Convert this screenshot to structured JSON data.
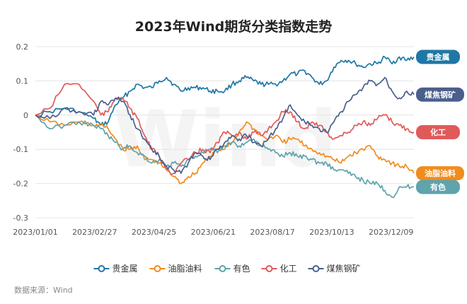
{
  "chart_data": {
    "type": "line",
    "title": "2023年Wind期货分类指数走势",
    "xlabel": "",
    "ylabel": "",
    "x_ticks": [
      "2023/01/01",
      "2023/02/27",
      "2023/04/25",
      "2023/06/21",
      "2023/08/17",
      "2023/10/13",
      "2023/12/09"
    ],
    "y_ticks": [
      "0.2",
      "0.1",
      "0",
      "-0.1",
      "-0.2",
      "-0.3"
    ],
    "ylim": [
      -0.3,
      0.2
    ],
    "grid": "horizontal",
    "legend_position": "bottom",
    "source": "数据来源：Wind",
    "watermark": "Wind",
    "series": [
      {
        "name": "贵金属",
        "color": "#1f77a5",
        "end_label": "贵金属",
        "points": [
          [
            "2023/01/01",
            0.0
          ],
          [
            "2023/01/15",
            0.01
          ],
          [
            "2023/01/29",
            0.02
          ],
          [
            "2023/02/12",
            0.01
          ],
          [
            "2023/02/26",
            -0.01
          ],
          [
            "2023/03/05",
            -0.03
          ],
          [
            "2023/03/12",
            -0.02
          ],
          [
            "2023/03/19",
            0.03
          ],
          [
            "2023/03/26",
            0.05
          ],
          [
            "2023/04/02",
            0.07
          ],
          [
            "2023/04/09",
            0.09
          ],
          [
            "2023/04/16",
            0.08
          ],
          [
            "2023/04/23",
            0.08
          ],
          [
            "2023/04/30",
            0.1
          ],
          [
            "2023/05/07",
            0.11
          ],
          [
            "2023/05/14",
            0.09
          ],
          [
            "2023/05/21",
            0.07
          ],
          [
            "2023/05/28",
            0.08
          ],
          [
            "2023/06/04",
            0.08
          ],
          [
            "2023/06/11",
            0.08
          ],
          [
            "2023/06/18",
            0.07
          ],
          [
            "2023/06/25",
            0.07
          ],
          [
            "2023/07/02",
            0.07
          ],
          [
            "2023/07/09",
            0.09
          ],
          [
            "2023/07/16",
            0.1
          ],
          [
            "2023/07/23",
            0.11
          ],
          [
            "2023/07/30",
            0.1
          ],
          [
            "2023/08/06",
            0.09
          ],
          [
            "2023/08/13",
            0.09
          ],
          [
            "2023/08/20",
            0.09
          ],
          [
            "2023/08/27",
            0.1
          ],
          [
            "2023/09/03",
            0.12
          ],
          [
            "2023/09/10",
            0.12
          ],
          [
            "2023/09/17",
            0.13
          ],
          [
            "2023/09/24",
            0.11
          ],
          [
            "2023/10/01",
            0.09
          ],
          [
            "2023/10/08",
            0.1
          ],
          [
            "2023/10/15",
            0.14
          ],
          [
            "2023/10/22",
            0.16
          ],
          [
            "2023/10/29",
            0.16
          ],
          [
            "2023/11/05",
            0.15
          ],
          [
            "2023/11/12",
            0.14
          ],
          [
            "2023/11/19",
            0.15
          ],
          [
            "2023/11/26",
            0.15
          ],
          [
            "2023/12/03",
            0.17
          ],
          [
            "2023/12/10",
            0.15
          ],
          [
            "2023/12/17",
            0.17
          ],
          [
            "2023/12/24",
            0.16
          ],
          [
            "2023/12/31",
            0.17
          ]
        ]
      },
      {
        "name": "油脂油料",
        "color": "#f08c1e",
        "end_label": "油脂油料",
        "points": [
          [
            "2023/01/01",
            0.0
          ],
          [
            "2023/01/15",
            -0.02
          ],
          [
            "2023/01/29",
            -0.03
          ],
          [
            "2023/02/12",
            -0.02
          ],
          [
            "2023/02/26",
            -0.03
          ],
          [
            "2023/03/05",
            -0.03
          ],
          [
            "2023/03/12",
            -0.04
          ],
          [
            "2023/03/19",
            -0.07
          ],
          [
            "2023/03/26",
            -0.1
          ],
          [
            "2023/04/02",
            -0.1
          ],
          [
            "2023/04/09",
            -0.09
          ],
          [
            "2023/04/16",
            -0.13
          ],
          [
            "2023/04/23",
            -0.13
          ],
          [
            "2023/04/30",
            -0.14
          ],
          [
            "2023/05/07",
            -0.16
          ],
          [
            "2023/05/14",
            -0.18
          ],
          [
            "2023/05/21",
            -0.2
          ],
          [
            "2023/05/28",
            -0.18
          ],
          [
            "2023/06/04",
            -0.17
          ],
          [
            "2023/06/11",
            -0.14
          ],
          [
            "2023/06/18",
            -0.12
          ],
          [
            "2023/06/25",
            -0.1
          ],
          [
            "2023/07/02",
            -0.1
          ],
          [
            "2023/07/09",
            -0.08
          ],
          [
            "2023/07/16",
            -0.05
          ],
          [
            "2023/07/23",
            -0.02
          ],
          [
            "2023/07/30",
            -0.04
          ],
          [
            "2023/08/06",
            -0.06
          ],
          [
            "2023/08/13",
            -0.07
          ],
          [
            "2023/08/20",
            -0.06
          ],
          [
            "2023/08/27",
            -0.08
          ],
          [
            "2023/09/03",
            -0.07
          ],
          [
            "2023/09/10",
            -0.07
          ],
          [
            "2023/09/17",
            -0.09
          ],
          [
            "2023/09/24",
            -0.1
          ],
          [
            "2023/10/01",
            -0.11
          ],
          [
            "2023/10/08",
            -0.12
          ],
          [
            "2023/10/15",
            -0.13
          ],
          [
            "2023/10/22",
            -0.14
          ],
          [
            "2023/10/29",
            -0.12
          ],
          [
            "2023/11/05",
            -0.11
          ],
          [
            "2023/11/12",
            -0.1
          ],
          [
            "2023/11/19",
            -0.09
          ],
          [
            "2023/11/26",
            -0.12
          ],
          [
            "2023/12/03",
            -0.13
          ],
          [
            "2023/12/10",
            -0.14
          ],
          [
            "2023/12/17",
            -0.15
          ],
          [
            "2023/12/24",
            -0.15
          ],
          [
            "2023/12/31",
            -0.17
          ]
        ]
      },
      {
        "name": "有色",
        "color": "#5fa3ab",
        "end_label": "有色",
        "points": [
          [
            "2023/01/01",
            0.0
          ],
          [
            "2023/01/15",
            -0.04
          ],
          [
            "2023/01/29",
            -0.03
          ],
          [
            "2023/02/12",
            -0.02
          ],
          [
            "2023/02/26",
            -0.03
          ],
          [
            "2023/03/05",
            -0.04
          ],
          [
            "2023/03/12",
            -0.06
          ],
          [
            "2023/03/19",
            -0.08
          ],
          [
            "2023/03/26",
            -0.1
          ],
          [
            "2023/04/02",
            -0.09
          ],
          [
            "2023/04/09",
            -0.11
          ],
          [
            "2023/04/16",
            -0.12
          ],
          [
            "2023/04/23",
            -0.14
          ],
          [
            "2023/04/30",
            -0.13
          ],
          [
            "2023/05/07",
            -0.15
          ],
          [
            "2023/05/14",
            -0.14
          ],
          [
            "2023/05/21",
            -0.15
          ],
          [
            "2023/05/28",
            -0.13
          ],
          [
            "2023/06/04",
            -0.12
          ],
          [
            "2023/06/11",
            -0.11
          ],
          [
            "2023/06/18",
            -0.1
          ],
          [
            "2023/06/25",
            -0.11
          ],
          [
            "2023/07/02",
            -0.09
          ],
          [
            "2023/07/09",
            -0.08
          ],
          [
            "2023/07/16",
            -0.09
          ],
          [
            "2023/07/23",
            -0.08
          ],
          [
            "2023/07/30",
            -0.07
          ],
          [
            "2023/08/06",
            -0.09
          ],
          [
            "2023/08/13",
            -0.1
          ],
          [
            "2023/08/20",
            -0.11
          ],
          [
            "2023/08/27",
            -0.12
          ],
          [
            "2023/09/03",
            -0.11
          ],
          [
            "2023/09/10",
            -0.12
          ],
          [
            "2023/09/17",
            -0.12
          ],
          [
            "2023/09/24",
            -0.13
          ],
          [
            "2023/10/01",
            -0.14
          ],
          [
            "2023/10/08",
            -0.14
          ],
          [
            "2023/10/15",
            -0.16
          ],
          [
            "2023/10/22",
            -0.16
          ],
          [
            "2023/10/29",
            -0.17
          ],
          [
            "2023/11/05",
            -0.18
          ],
          [
            "2023/11/12",
            -0.19
          ],
          [
            "2023/11/19",
            -0.2
          ],
          [
            "2023/11/26",
            -0.2
          ],
          [
            "2023/12/03",
            -0.22
          ],
          [
            "2023/12/10",
            -0.24
          ],
          [
            "2023/12/17",
            -0.21
          ],
          [
            "2023/12/24",
            -0.21
          ],
          [
            "2023/12/31",
            -0.21
          ]
        ]
      },
      {
        "name": "化工",
        "color": "#e05a5a",
        "end_label": "化工",
        "points": [
          [
            "2023/01/01",
            0.0
          ],
          [
            "2023/01/15",
            0.02
          ],
          [
            "2023/01/29",
            0.09
          ],
          [
            "2023/02/12",
            0.09
          ],
          [
            "2023/02/26",
            0.04
          ],
          [
            "2023/03/05",
            0.0
          ],
          [
            "2023/03/12",
            0.01
          ],
          [
            "2023/03/19",
            0.05
          ],
          [
            "2023/03/26",
            0.05
          ],
          [
            "2023/04/02",
            0.02
          ],
          [
            "2023/04/09",
            -0.01
          ],
          [
            "2023/04/16",
            -0.06
          ],
          [
            "2023/04/23",
            -0.1
          ],
          [
            "2023/04/30",
            -0.12
          ],
          [
            "2023/05/07",
            -0.16
          ],
          [
            "2023/05/14",
            -0.17
          ],
          [
            "2023/05/21",
            -0.14
          ],
          [
            "2023/05/28",
            -0.13
          ],
          [
            "2023/06/04",
            -0.11
          ],
          [
            "2023/06/11",
            -0.1
          ],
          [
            "2023/06/18",
            -0.11
          ],
          [
            "2023/06/25",
            -0.08
          ],
          [
            "2023/07/02",
            -0.05
          ],
          [
            "2023/07/09",
            -0.06
          ],
          [
            "2023/07/16",
            -0.05
          ],
          [
            "2023/07/23",
            -0.07
          ],
          [
            "2023/07/30",
            -0.05
          ],
          [
            "2023/08/06",
            -0.06
          ],
          [
            "2023/08/13",
            -0.04
          ],
          [
            "2023/08/20",
            -0.02
          ],
          [
            "2023/08/27",
            0.01
          ],
          [
            "2023/09/03",
            0.01
          ],
          [
            "2023/09/10",
            -0.02
          ],
          [
            "2023/09/17",
            -0.04
          ],
          [
            "2023/09/24",
            -0.02
          ],
          [
            "2023/10/01",
            -0.03
          ],
          [
            "2023/10/08",
            -0.05
          ],
          [
            "2023/10/15",
            -0.07
          ],
          [
            "2023/10/22",
            -0.06
          ],
          [
            "2023/10/29",
            -0.05
          ],
          [
            "2023/11/05",
            -0.03
          ],
          [
            "2023/11/12",
            -0.02
          ],
          [
            "2023/11/19",
            -0.03
          ],
          [
            "2023/11/26",
            -0.01
          ],
          [
            "2023/12/03",
            0.0
          ],
          [
            "2023/12/10",
            -0.02
          ],
          [
            "2023/12/17",
            -0.03
          ],
          [
            "2023/12/24",
            -0.04
          ],
          [
            "2023/12/31",
            -0.05
          ]
        ]
      },
      {
        "name": "煤焦钢矿",
        "color": "#4a5f8c",
        "end_label": "煤焦钢矿",
        "points": [
          [
            "2023/01/01",
            0.0
          ],
          [
            "2023/01/15",
            -0.01
          ],
          [
            "2023/01/29",
            0.02
          ],
          [
            "2023/02/12",
            0.01
          ],
          [
            "2023/02/26",
            0.0
          ],
          [
            "2023/03/05",
            0.04
          ],
          [
            "2023/03/12",
            0.03
          ],
          [
            "2023/03/19",
            0.05
          ],
          [
            "2023/03/26",
            0.04
          ],
          [
            "2023/04/02",
            0.0
          ],
          [
            "2023/04/09",
            -0.04
          ],
          [
            "2023/04/16",
            -0.07
          ],
          [
            "2023/04/23",
            -0.1
          ],
          [
            "2023/04/30",
            -0.12
          ],
          [
            "2023/05/07",
            -0.15
          ],
          [
            "2023/05/14",
            -0.16
          ],
          [
            "2023/05/21",
            -0.17
          ],
          [
            "2023/05/28",
            -0.14
          ],
          [
            "2023/06/04",
            -0.11
          ],
          [
            "2023/06/11",
            -0.12
          ],
          [
            "2023/06/18",
            -0.13
          ],
          [
            "2023/06/25",
            -0.1
          ],
          [
            "2023/07/02",
            -0.08
          ],
          [
            "2023/07/09",
            -0.06
          ],
          [
            "2023/07/16",
            -0.07
          ],
          [
            "2023/07/23",
            -0.06
          ],
          [
            "2023/07/30",
            -0.08
          ],
          [
            "2023/08/06",
            -0.09
          ],
          [
            "2023/08/13",
            -0.07
          ],
          [
            "2023/08/20",
            -0.04
          ],
          [
            "2023/08/27",
            -0.01
          ],
          [
            "2023/09/03",
            0.03
          ],
          [
            "2023/09/10",
            0.0
          ],
          [
            "2023/09/17",
            -0.02
          ],
          [
            "2023/09/24",
            -0.03
          ],
          [
            "2023/10/01",
            -0.04
          ],
          [
            "2023/10/08",
            -0.05
          ],
          [
            "2023/10/15",
            -0.02
          ],
          [
            "2023/10/22",
            0.01
          ],
          [
            "2023/10/29",
            0.04
          ],
          [
            "2023/11/05",
            0.06
          ],
          [
            "2023/11/12",
            0.08
          ],
          [
            "2023/11/19",
            0.1
          ],
          [
            "2023/11/26",
            0.09
          ],
          [
            "2023/12/03",
            0.11
          ],
          [
            "2023/12/10",
            0.07
          ],
          [
            "2023/12/17",
            0.05
          ],
          [
            "2023/12/24",
            0.07
          ],
          [
            "2023/12/31",
            0.06
          ]
        ]
      }
    ]
  }
}
